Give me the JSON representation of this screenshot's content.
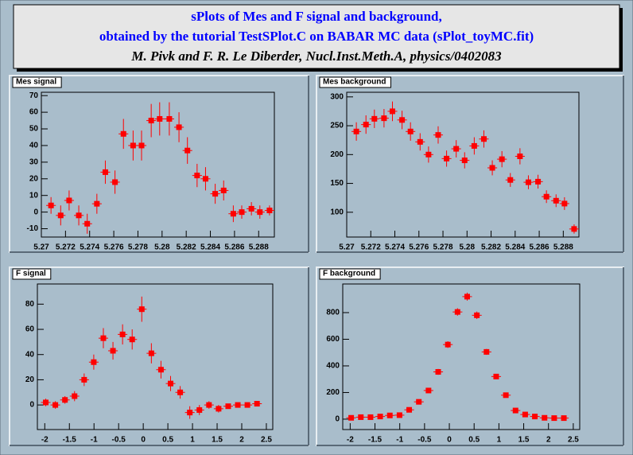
{
  "header": {
    "lines": [
      "sPlots of Mes and F signal and background,",
      "obtained by the tutorial TestSPlot.C on BABAR MC data (sPlot_toyMC.fit)",
      "M. Pivk and F. R. Le Diberder, Nucl.Inst.Meth.A, physics/0402083"
    ]
  },
  "chart_data": [
    {
      "type": "scatter",
      "title": "Mes signal",
      "color": "#ff0000",
      "grid": false,
      "x": [
        5.2708,
        5.2716,
        5.2723,
        5.2731,
        5.2738,
        5.2746,
        5.2753,
        5.2761,
        5.2768,
        5.2776,
        5.2783,
        5.2791,
        5.2798,
        5.2806,
        5.2814,
        5.2821,
        5.2829,
        5.2836,
        5.2844,
        5.2851,
        5.2859,
        5.2866,
        5.2874,
        5.2881,
        5.2889
      ],
      "values": [
        4,
        -2,
        7,
        -2,
        -7,
        5,
        24,
        18,
        47,
        40,
        40,
        55,
        56,
        56,
        51,
        37,
        22,
        20,
        11,
        13,
        -1,
        0,
        2,
        0,
        1
      ],
      "errors": [
        5,
        6,
        6,
        6,
        6,
        6,
        7,
        7,
        9,
        9,
        9,
        10,
        10,
        10,
        9,
        8,
        7,
        7,
        6,
        6,
        5,
        4,
        4,
        4,
        3
      ],
      "xlim": [
        5.27,
        5.2893
      ],
      "ylim": [
        -15,
        72
      ],
      "xticks": [
        5.27,
        5.272,
        5.274,
        5.276,
        5.278,
        5.28,
        5.282,
        5.284,
        5.286,
        5.288
      ],
      "yticks": [
        -10,
        0,
        10,
        20,
        30,
        40,
        50,
        60,
        70
      ]
    },
    {
      "type": "scatter",
      "title": "Mes background",
      "color": "#ff0000",
      "grid": false,
      "x": [
        5.2708,
        5.2716,
        5.2723,
        5.2731,
        5.2738,
        5.2746,
        5.2753,
        5.2761,
        5.2768,
        5.2776,
        5.2783,
        5.2791,
        5.2798,
        5.2806,
        5.2814,
        5.2821,
        5.2829,
        5.2836,
        5.2844,
        5.2851,
        5.2859,
        5.2866,
        5.2874,
        5.2881,
        5.2889
      ],
      "values": [
        240,
        252,
        262,
        263,
        275,
        260,
        240,
        222,
        200,
        234,
        193,
        210,
        190,
        215,
        227,
        177,
        192,
        156,
        197,
        152,
        153,
        127,
        120,
        115,
        71
      ],
      "errors": [
        16,
        16,
        16,
        16,
        17,
        16,
        16,
        15,
        14,
        15,
        14,
        15,
        14,
        15,
        15,
        13,
        14,
        12,
        14,
        12,
        12,
        11,
        11,
        11,
        8
      ],
      "xlim": [
        5.27,
        5.2893
      ],
      "ylim": [
        57,
        308
      ],
      "xticks": [
        5.27,
        5.272,
        5.274,
        5.276,
        5.278,
        5.28,
        5.282,
        5.284,
        5.286,
        5.288
      ],
      "yticks": [
        100,
        150,
        200,
        250,
        300
      ]
    },
    {
      "type": "scatter",
      "title": "F signal",
      "color": "#ff0000",
      "grid": false,
      "x": [
        -1.98,
        -1.785,
        -1.59,
        -1.395,
        -1.2,
        -1.005,
        -0.81,
        -0.615,
        -0.42,
        -0.225,
        -0.03,
        0.165,
        0.36,
        0.555,
        0.75,
        0.945,
        1.14,
        1.335,
        1.53,
        1.725,
        1.92,
        2.115,
        2.31
      ],
      "values": [
        2,
        0,
        4,
        7,
        20,
        34,
        53,
        43,
        56,
        52,
        76,
        41,
        28,
        17,
        10,
        -6,
        -4,
        0,
        -3,
        -1,
        0,
        0,
        1
      ],
      "errors": [
        3,
        3,
        3,
        4,
        5,
        6,
        8,
        7,
        8,
        8,
        10,
        8,
        7,
        6,
        5,
        5,
        4,
        3,
        3,
        2,
        2,
        2,
        2
      ],
      "xlim": [
        -2.15,
        2.63
      ],
      "ylim": [
        -19.5,
        96
      ],
      "xticks": [
        -2,
        -1.5,
        -1,
        -0.5,
        0,
        0.5,
        1,
        1.5,
        2,
        2.5
      ],
      "yticks": [
        0,
        20,
        40,
        60,
        80
      ]
    },
    {
      "type": "scatter",
      "title": "F background",
      "color": "#ff0000",
      "grid": false,
      "x": [
        -1.98,
        -1.785,
        -1.59,
        -1.395,
        -1.2,
        -1.005,
        -0.81,
        -0.615,
        -0.42,
        -0.225,
        -0.03,
        0.165,
        0.36,
        0.555,
        0.75,
        0.945,
        1.14,
        1.335,
        1.53,
        1.725,
        1.92,
        2.115,
        2.31
      ],
      "values": [
        10,
        15,
        15,
        20,
        28,
        30,
        70,
        130,
        215,
        355,
        560,
        805,
        920,
        780,
        505,
        320,
        180,
        65,
        35,
        20,
        10,
        8,
        8
      ],
      "errors": [
        5,
        6,
        6,
        7,
        8,
        9,
        12,
        15,
        18,
        22,
        25,
        28,
        30,
        28,
        22,
        18,
        14,
        9,
        7,
        6,
        4,
        4,
        4
      ],
      "xlim": [
        -2.15,
        2.63
      ],
      "ylim": [
        -78,
        1015
      ],
      "xticks": [
        -2,
        -1.5,
        -1,
        -0.5,
        0,
        0.5,
        1,
        1.5,
        2,
        2.5
      ],
      "yticks": [
        0,
        200,
        400,
        600,
        800
      ]
    }
  ]
}
